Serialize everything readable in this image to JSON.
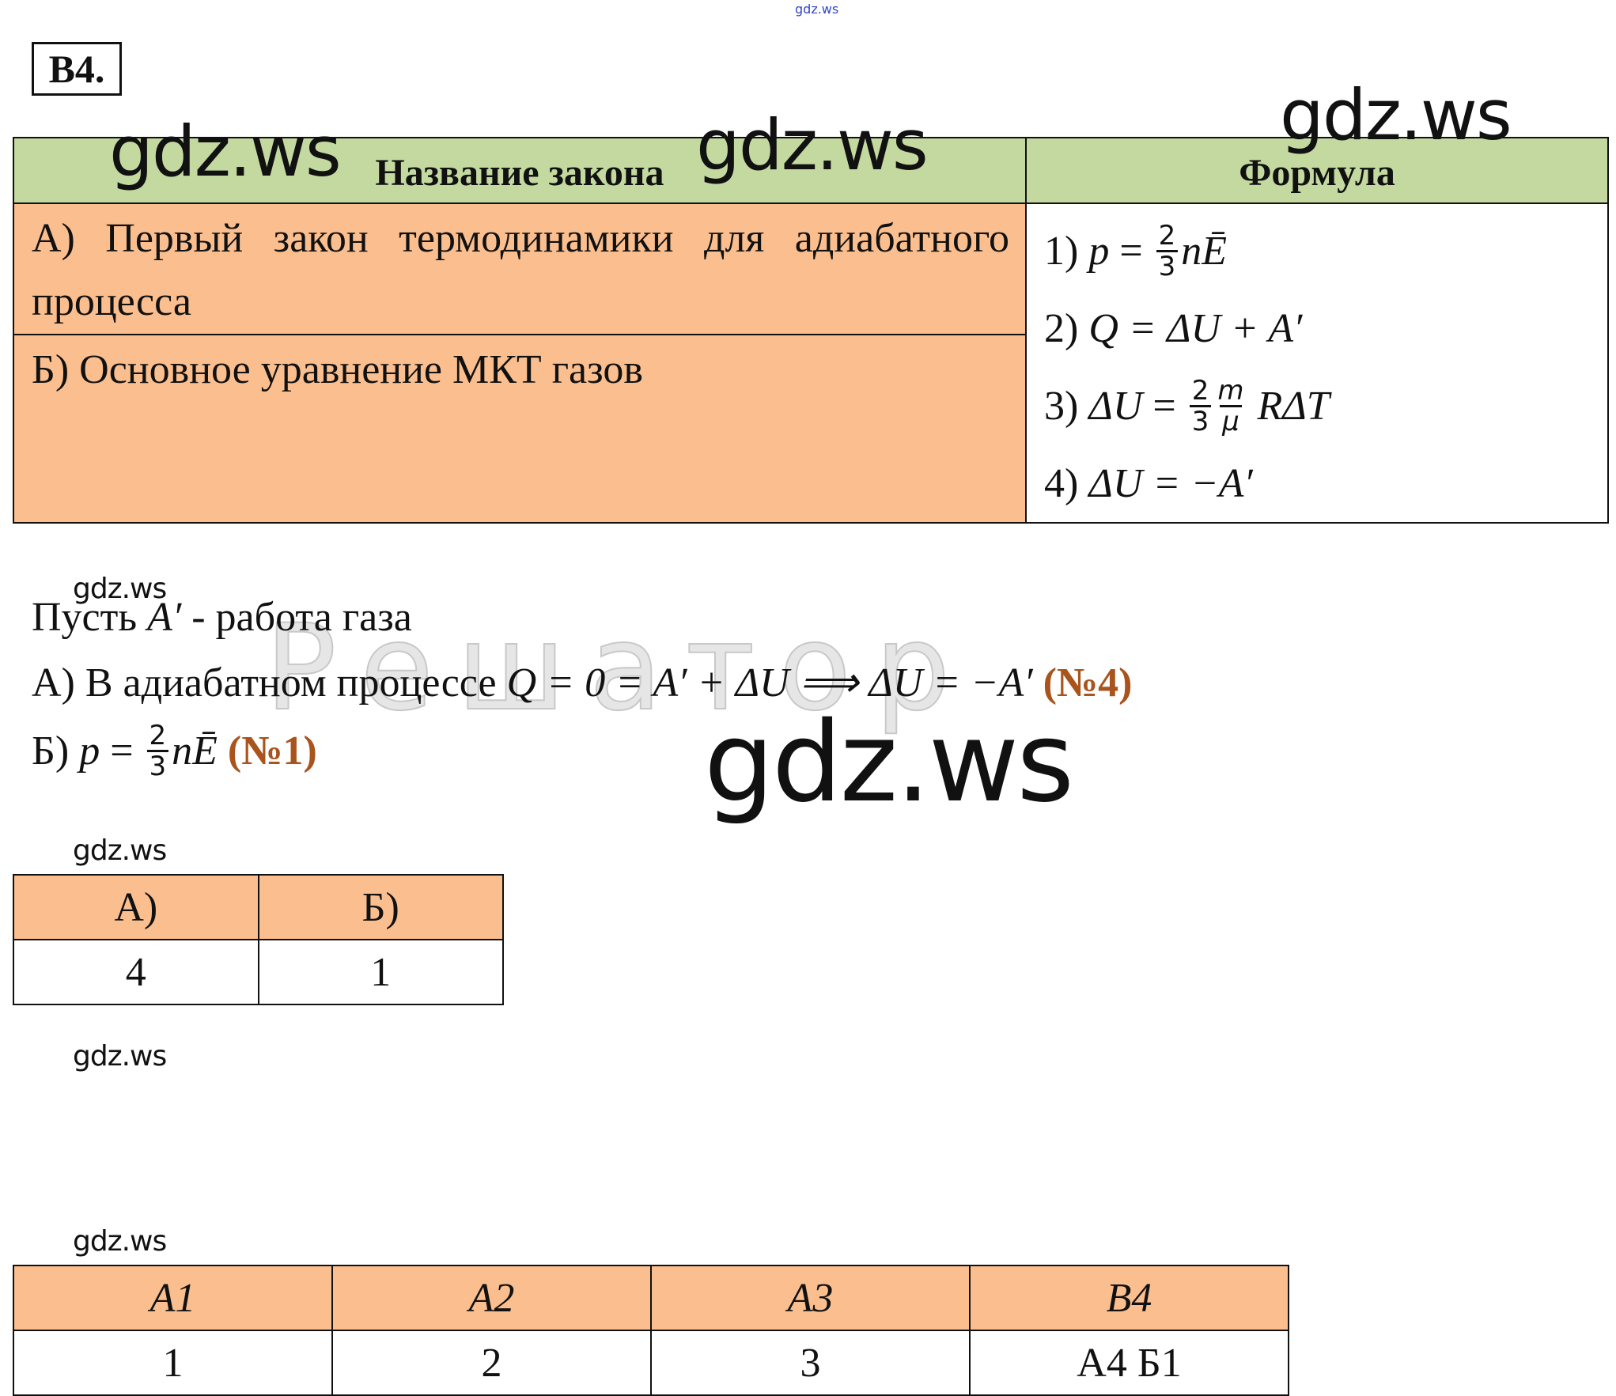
{
  "top_watermark": "gdz.ws",
  "task_label": "B4.",
  "watermarks": {
    "big": "gdz.ws",
    "small": "gdz.ws",
    "ghost": "Решатор"
  },
  "colors": {
    "header_green": "#c3d9a0",
    "row_orange": "#fbbf8f",
    "answer_brown": "#a9541d"
  },
  "main_table": {
    "headers": [
      "Название закона",
      "Формула"
    ],
    "laws": [
      "А) Первый закон термодинамики для адиабатного процесса",
      "Б) Основное уравнение МКТ газов"
    ],
    "formulas": [
      {
        "prefix": "1) ",
        "lhs": "p",
        "eq": " = ",
        "num": "2",
        "den": "3",
        "rest": "nĒ"
      },
      {
        "prefix": "2) ",
        "text": "Q = ΔU + A′"
      },
      {
        "prefix": "3) ",
        "lhs": "ΔU",
        "eq": " = ",
        "num": "2",
        "den": "3",
        "num2": "m",
        "den2": "μ",
        "rest": " RΔT"
      },
      {
        "prefix": "4) ",
        "text": "ΔU = −A′"
      }
    ]
  },
  "solution": {
    "line1_prefix": "Пусть ",
    "line1_var": "A′",
    "line1_suffix": " - работа газа",
    "line2_prefix": "А) В адиабатном процессе ",
    "line2_formula": "Q = 0 = A′ + ΔU ⟹ ΔU = −A′",
    "line2_answer": " (№4)",
    "line3_prefix": "Б) ",
    "line3_lhs": "p",
    "line3_eq": " = ",
    "line3_num": "2",
    "line3_den": "3",
    "line3_rest": "nĒ",
    "line3_answer": " (№1)"
  },
  "answer_table": {
    "headers": [
      "А)",
      "Б)"
    ],
    "values": [
      "4",
      "1"
    ]
  },
  "summary_table": {
    "headers": [
      "A1",
      "A2",
      "A3",
      "B4"
    ],
    "values": [
      "1",
      "2",
      "3",
      "А4 Б1"
    ]
  }
}
